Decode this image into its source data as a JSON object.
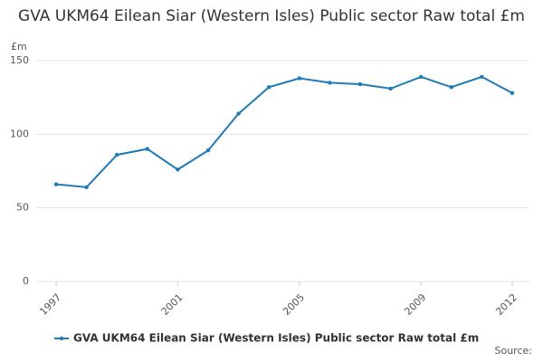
{
  "chart_data": {
    "type": "line",
    "title": "GVA UKM64 Eilean Siar (Western Isles) Public sector Raw total £m",
    "y_label": "£m",
    "source": "Source:",
    "x": [
      1997,
      1998,
      1999,
      2000,
      2001,
      2002,
      2003,
      2004,
      2005,
      2006,
      2007,
      2008,
      2009,
      2010,
      2011,
      2012
    ],
    "series": [
      {
        "name": "GVA UKM64 Eilean Siar (Western Isles) Public sector Raw total £m",
        "color": "#1f7ab5",
        "values": [
          66,
          64,
          86,
          90,
          76,
          89,
          114,
          132,
          138,
          135,
          134,
          131,
          139,
          132,
          139,
          128
        ]
      }
    ],
    "xlim": [
      1997,
      2012
    ],
    "xticks": [
      1997,
      2001,
      2005,
      2009,
      2012
    ],
    "ylim": [
      0,
      150
    ],
    "yticks": [
      0,
      50,
      100,
      150
    ],
    "grid": true
  }
}
